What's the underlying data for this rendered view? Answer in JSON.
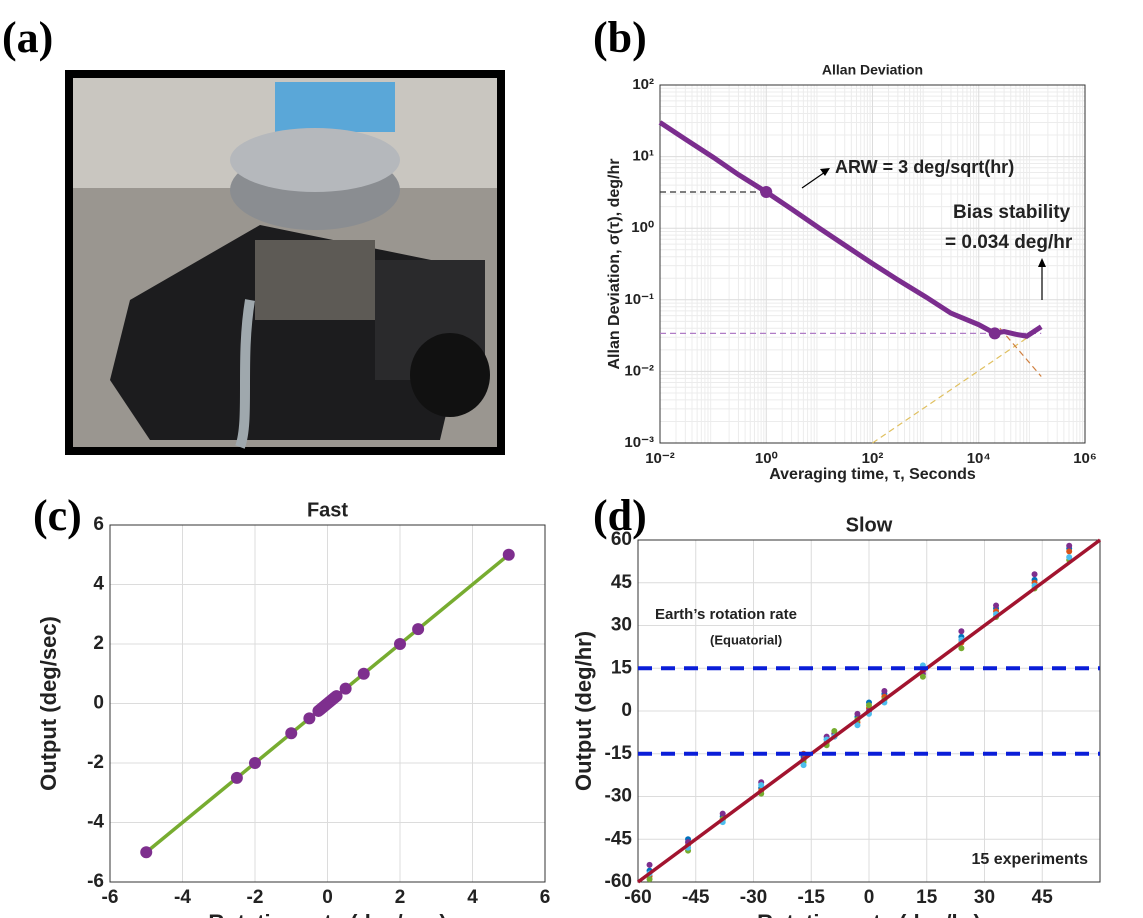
{
  "photo": {
    "label": "(a)"
  },
  "chart_data": [
    {
      "type": "line",
      "label": "(b)",
      "title": "Allan Deviation",
      "x_label": "Averaging time, τ, Seconds",
      "y_label": "Allan Deviation, σ(τ), deg/hr",
      "log": true,
      "grid": true,
      "xlim": [
        0.01,
        1000000
      ],
      "ylim": [
        0.001,
        100
      ],
      "xticks": [
        {
          "value": 0.01,
          "label": "10⁻²"
        },
        {
          "value": 1,
          "label": "10⁰"
        },
        {
          "value": 100,
          "label": "10²"
        },
        {
          "value": 10000,
          "label": "10⁴"
        },
        {
          "value": 1000000,
          "label": "10⁶"
        }
      ],
      "yticks": [
        {
          "value": 0.001,
          "label": "10⁻³"
        },
        {
          "value": 0.01,
          "label": "10⁻²"
        },
        {
          "value": 0.1,
          "label": "10⁻¹"
        },
        {
          "value": 1,
          "label": "10⁰"
        },
        {
          "value": 10,
          "label": "10¹"
        },
        {
          "value": 100,
          "label": "10²"
        }
      ],
      "annotations": [
        "ARW = 3 deg/sqrt(hr)",
        "Bias stability",
        "= 0.034 deg/hr"
      ],
      "series": [
        {
          "style": "dashed",
          "color": "#333333",
          "x": [
            0.01,
            1
          ],
          "values": [
            3.2,
            3.2
          ]
        },
        {
          "style": "dashed",
          "color": "#b07cc6",
          "x": [
            0.01,
            150000
          ],
          "values": [
            0.034,
            0.034
          ]
        },
        {
          "style": "dashed",
          "color": "#e0c060",
          "x": [
            100,
            150000
          ],
          "values": [
            0.001,
            0.04
          ]
        },
        {
          "style": "dashed",
          "color": "#d08040",
          "x": [
            25000,
            150000
          ],
          "values": [
            0.04,
            0.0085
          ]
        },
        {
          "style": "line",
          "color": "#7b2d8e",
          "x": [
            0.01,
            0.03,
            0.1,
            0.3,
            1,
            3,
            10,
            30,
            100,
            300,
            1000,
            3000,
            10000,
            20000,
            30000,
            50000,
            80000,
            150000
          ],
          "values": [
            30,
            17.5,
            9.8,
            5.6,
            3.2,
            1.85,
            1.0,
            0.58,
            0.32,
            0.19,
            0.11,
            0.065,
            0.045,
            0.034,
            0.036,
            0.033,
            0.031,
            0.042
          ]
        },
        {
          "style": "markers",
          "color": "#7b2d8e",
          "x": [
            1,
            20000
          ],
          "values": [
            3.2,
            0.034
          ]
        }
      ]
    },
    {
      "type": "scatter",
      "label": "(c)",
      "title": "Fast",
      "x_label": "Rotation rate (deg/sec)",
      "y_label": "Output (deg/sec)",
      "grid": true,
      "xlim": [
        -6,
        6
      ],
      "ylim": [
        -6,
        6
      ],
      "xticks": [
        -6,
        -4,
        -2,
        0,
        2,
        4,
        6
      ],
      "yticks": [
        -6,
        -4,
        -2,
        0,
        2,
        4,
        6
      ],
      "annotations": [],
      "series": [
        {
          "style": "line",
          "color": "#77ac30",
          "x": [
            -5,
            5
          ],
          "values": [
            -5,
            5
          ]
        },
        {
          "style": "markers",
          "color": "#7e2f8e",
          "x": [
            -5,
            -2.5,
            -2,
            -1,
            -0.5,
            -0.25,
            -0.2,
            -0.15,
            -0.1,
            -0.05,
            0,
            0.05,
            0.1,
            0.15,
            0.2,
            0.25,
            0.5,
            1,
            2,
            2.5,
            5
          ],
          "values": [
            -5,
            -2.5,
            -2,
            -1,
            -0.5,
            -0.25,
            -0.2,
            -0.15,
            -0.1,
            -0.05,
            0,
            0.05,
            0.1,
            0.15,
            0.2,
            0.25,
            0.5,
            1,
            2,
            2.5,
            5
          ]
        }
      ]
    },
    {
      "type": "scatter",
      "label": "(d)",
      "title": "Slow",
      "x_label": "Rotation rate (deg/hr)",
      "y_label": "Output (deg/hr)",
      "grid": true,
      "xlim": [
        -60,
        60
      ],
      "ylim": [
        -60,
        60
      ],
      "xticks": [
        -60,
        -45,
        -30,
        -15,
        0,
        15,
        30,
        45
      ],
      "yticks": [
        -60,
        -45,
        -30,
        -15,
        0,
        15,
        30,
        45,
        60
      ],
      "annotations": [
        "Earth’s rotation rate",
        "(Equatorial)",
        "15 experiments"
      ],
      "series": [
        {
          "style": "markers",
          "color": "#0072bd",
          "x": [
            -57,
            -47,
            -38,
            -28,
            -17,
            -11,
            -9,
            -3,
            0,
            4,
            14,
            24,
            33,
            43,
            52
          ],
          "values": [
            -56,
            -45,
            -37,
            -27,
            -16,
            -10,
            -8,
            -2,
            3,
            6,
            15,
            26,
            36,
            46,
            57
          ]
        },
        {
          "style": "markers",
          "color": "#d95319",
          "x": [
            -57,
            -47,
            -38,
            -28,
            -17,
            -11,
            -9,
            -3,
            0,
            4,
            14,
            24,
            33,
            43,
            52
          ],
          "values": [
            -58,
            -47,
            -38,
            -28,
            -15,
            -11,
            -9,
            -4,
            1,
            5,
            14,
            24,
            35,
            45,
            56
          ]
        },
        {
          "style": "markers",
          "color": "#7e2f8e",
          "x": [
            -57,
            -47,
            -38,
            -28,
            -17,
            -11,
            -9,
            -3,
            0,
            4,
            14,
            24,
            33,
            43,
            52
          ],
          "values": [
            -54,
            -46,
            -36,
            -25,
            -17,
            -9,
            -8,
            -1,
            0,
            7,
            13,
            28,
            37,
            48,
            58
          ]
        },
        {
          "style": "markers",
          "color": "#77ac30",
          "x": [
            -57,
            -47,
            -38,
            -28,
            -17,
            -11,
            -9,
            -3,
            0,
            4,
            14,
            24,
            33,
            43,
            52
          ],
          "values": [
            -59,
            -49,
            -38,
            -29,
            -18,
            -12,
            -7,
            -3,
            2,
            4,
            12,
            22,
            33,
            43,
            53
          ]
        },
        {
          "style": "markers",
          "color": "#4dbeee",
          "x": [
            -57,
            -47,
            -38,
            -28,
            -17,
            -11,
            -9,
            -3,
            0,
            4,
            14,
            24,
            33,
            43,
            52
          ],
          "values": [
            -57,
            -48,
            -39,
            -26,
            -19,
            -10,
            -9,
            -5,
            -1,
            3,
            16,
            25,
            34,
            44,
            54
          ]
        },
        {
          "style": "line",
          "color": "#a2142f",
          "x": [
            -60,
            60
          ],
          "values": [
            -60,
            60
          ]
        },
        {
          "style": "dashed-bold",
          "color": "#0a1ed8",
          "x": [
            -60,
            60
          ],
          "values": [
            15,
            15
          ]
        },
        {
          "style": "dashed-bold",
          "color": "#0a1ed8",
          "x": [
            -60,
            60
          ],
          "values": [
            -15,
            -15
          ]
        }
      ]
    }
  ]
}
